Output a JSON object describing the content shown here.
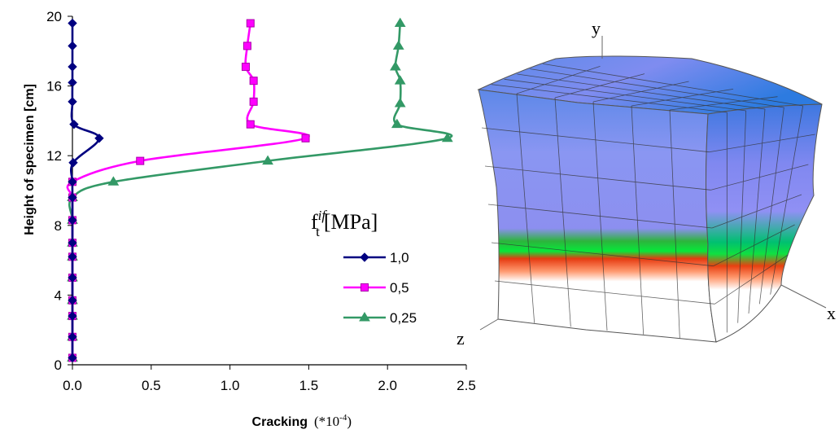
{
  "chart_data": {
    "type": "line",
    "xlabel": "Cracking",
    "xlabel_unit": "(*10",
    "xlabel_exp": "-4",
    "xlabel_close": ")",
    "ylabel": "Height of specimen [cm]",
    "xlim": [
      0,
      2.5
    ],
    "ylim": [
      0,
      20
    ],
    "x_ticks": [
      "0.0",
      "0.5",
      "1.0",
      "1.5",
      "2.0",
      "2.5"
    ],
    "x_tick_values": [
      0,
      0.5,
      1.0,
      1.5,
      2.0,
      2.5
    ],
    "y_ticks": [
      "0",
      "4",
      "8",
      "12",
      "16",
      "20"
    ],
    "y_tick_values": [
      0,
      4,
      8,
      12,
      16,
      20
    ],
    "legend": {
      "title_main": "f",
      "title_sub": "t",
      "title_sup": "if",
      "title_unit": "[MPa]",
      "placement": "center-right"
    },
    "series": [
      {
        "name": "1,0",
        "color": "#000080",
        "marker": "diamond",
        "points": [
          [
            0,
            0.4
          ],
          [
            0,
            1.6
          ],
          [
            0,
            2.8
          ],
          [
            0,
            3.7
          ],
          [
            0,
            5.0
          ],
          [
            0,
            6.2
          ],
          [
            0,
            7.0
          ],
          [
            0,
            8.3
          ],
          [
            0,
            9.6
          ],
          [
            0,
            10.5
          ],
          [
            0.005,
            11.6
          ],
          [
            0.17,
            13.0
          ],
          [
            0.01,
            13.8
          ],
          [
            0,
            15.1
          ],
          [
            0,
            16.2
          ],
          [
            0,
            17.1
          ],
          [
            0,
            18.3
          ],
          [
            0,
            19.6
          ]
        ]
      },
      {
        "name": "0,5",
        "color": "#FF00FF",
        "marker": "square",
        "points": [
          [
            0,
            0.4
          ],
          [
            0,
            1.6
          ],
          [
            0,
            2.8
          ],
          [
            0,
            3.7
          ],
          [
            0,
            5.0
          ],
          [
            0,
            6.2
          ],
          [
            0,
            7.0
          ],
          [
            0,
            8.3
          ],
          [
            0,
            9.6
          ],
          [
            0,
            10.5
          ],
          [
            0.43,
            11.7
          ],
          [
            1.48,
            13.0
          ],
          [
            1.13,
            13.8
          ],
          [
            1.15,
            15.1
          ],
          [
            1.15,
            16.3
          ],
          [
            1.1,
            17.1
          ],
          [
            1.11,
            18.3
          ],
          [
            1.13,
            19.6
          ]
        ]
      },
      {
        "name": "0,25",
        "color": "#339966",
        "marker": "triangle",
        "points": [
          [
            0,
            0.4
          ],
          [
            0,
            1.6
          ],
          [
            0,
            2.8
          ],
          [
            0,
            3.7
          ],
          [
            0,
            5.0
          ],
          [
            0,
            6.2
          ],
          [
            0,
            7.0
          ],
          [
            0,
            8.3
          ],
          [
            0,
            9.6
          ],
          [
            0.26,
            10.5
          ],
          [
            1.24,
            11.7
          ],
          [
            2.38,
            13.0
          ],
          [
            2.06,
            13.8
          ],
          [
            2.08,
            15.0
          ],
          [
            2.08,
            16.3
          ],
          [
            2.05,
            17.1
          ],
          [
            2.07,
            18.3
          ],
          [
            2.08,
            19.6
          ]
        ]
      }
    ]
  },
  "cube": {
    "axis_y": "y",
    "axis_x": "x",
    "axis_z": "z"
  }
}
